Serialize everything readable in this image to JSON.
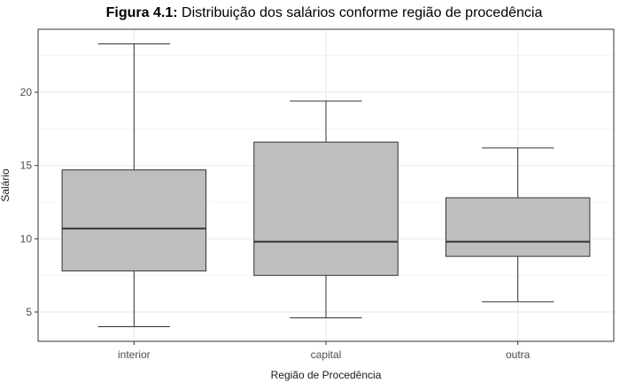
{
  "chart_data": {
    "type": "box",
    "title_bold": "Figura 4.1:",
    "title_rest": " Distribuição dos salários conforme região de procedência",
    "xlabel": "Região de Procedência",
    "ylabel": "Salário",
    "categories": [
      "interior",
      "capital",
      "outra"
    ],
    "boxes": [
      {
        "category": "interior",
        "min": 4.0,
        "q1": 7.8,
        "median": 10.7,
        "q3": 14.7,
        "max": 23.3
      },
      {
        "category": "capital",
        "min": 4.6,
        "q1": 7.5,
        "median": 9.8,
        "q3": 16.6,
        "max": 19.4
      },
      {
        "category": "outra",
        "min": 5.7,
        "q1": 8.8,
        "median": 9.8,
        "q3": 12.8,
        "max": 16.2
      }
    ],
    "ylim": [
      3.0,
      24.3
    ],
    "yticks": [
      5,
      10,
      15,
      20
    ],
    "ytick_labels": [
      "5",
      "10",
      "15",
      "20"
    ],
    "grid": true,
    "box_fill": "#bebebe",
    "box_stroke": "#333333",
    "grid_color": "#ebebeb"
  }
}
